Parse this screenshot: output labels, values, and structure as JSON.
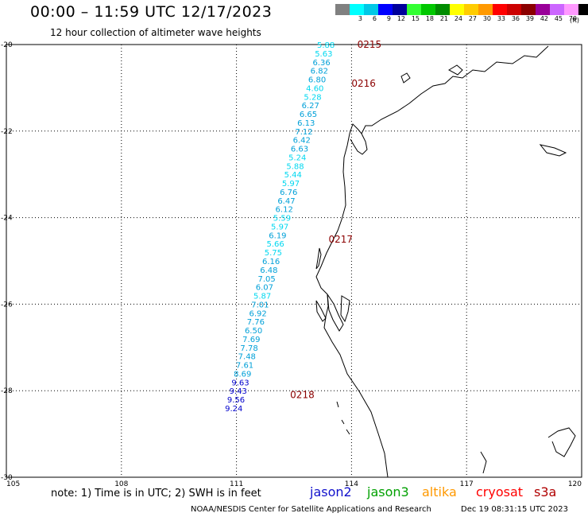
{
  "header": {
    "title": "00:00 – 11:59 UTC 12/17/2023",
    "subtitle": "12 hour collection of altimeter wave heights"
  },
  "scale": {
    "unit": "(ft)",
    "items": [
      {
        "label": "",
        "color": "#808080"
      },
      {
        "label": "3",
        "color": "#00ffff"
      },
      {
        "label": "6",
        "color": "#00c8e6"
      },
      {
        "label": "9",
        "color": "#0000ff"
      },
      {
        "label": "12",
        "color": "#00009b"
      },
      {
        "label": "15",
        "color": "#33ff33"
      },
      {
        "label": "18",
        "color": "#00c800"
      },
      {
        "label": "21",
        "color": "#008c00"
      },
      {
        "label": "24",
        "color": "#ffff00"
      },
      {
        "label": "27",
        "color": "#ffcc00"
      },
      {
        "label": "30",
        "color": "#ff9900"
      },
      {
        "label": "33",
        "color": "#ff0000"
      },
      {
        "label": "36",
        "color": "#cc0000"
      },
      {
        "label": "39",
        "color": "#8b0000"
      },
      {
        "label": "42",
        "color": "#990099"
      },
      {
        "label": "45",
        "color": "#cc66ff"
      },
      {
        "label": "70",
        "color": "#ff99ff"
      },
      {
        "label": "",
        "color": "#000000"
      }
    ]
  },
  "axes": {
    "lon_labels": [
      "105",
      "108",
      "111",
      "114",
      "117",
      "120"
    ],
    "lat_labels": [
      "-20",
      "-22",
      "-24",
      "-26",
      "-28",
      "-30"
    ],
    "lon_range": [
      105,
      120
    ],
    "lat_range": [
      -20,
      -30
    ]
  },
  "track": {
    "satellite": "jason2",
    "lat_start": -20.0,
    "lat_step": -0.2,
    "lon_top": 113.1,
    "lon_bottom": 110.7,
    "values": [
      "5.88",
      "5.63",
      "6.36",
      "6.82",
      "6.80",
      "4.60",
      "5.28",
      "6.27",
      "6.65",
      "6.13",
      "7.12",
      "6.42",
      "6.63",
      "5.24",
      "5.88",
      "5.44",
      "5.97",
      "6.76",
      "6.47",
      "6.12",
      "5.59",
      "5.97",
      "6.19",
      "5.66",
      "5.75",
      "6.16",
      "6.48",
      "7.05",
      "6.07",
      "5.87",
      "7.01",
      "6.92",
      "7.76",
      "6.50",
      "7.69",
      "7.78",
      "7.48",
      "7.61",
      "8.69",
      "9.63",
      "9.43",
      "9.56",
      "9.24"
    ],
    "colors": {
      "below6": "#00d8f0",
      "6to9": "#00a0d8",
      "9to12": "#0000cc"
    }
  },
  "time_labels": [
    {
      "text": "0215",
      "lat": -20.0,
      "lon": 114.15
    },
    {
      "text": "0216",
      "lat": -20.9,
      "lon": 114.0
    },
    {
      "text": "0217",
      "lat": -24.5,
      "lon": 113.4
    },
    {
      "text": "0218",
      "lat": -28.1,
      "lon": 112.4
    }
  ],
  "time_label_color": "#8b0000",
  "note": "note: 1) Time is in UTC; 2) SWH is in feet",
  "satellites": [
    {
      "name": "jason2",
      "color": "#1010cc"
    },
    {
      "name": "jason3",
      "color": "#00a000"
    },
    {
      "name": "altika",
      "color": "#ff9900"
    },
    {
      "name": "cryosat",
      "color": "#ff0000"
    },
    {
      "name": "s3a",
      "color": "#b00000"
    }
  ],
  "footer": {
    "credit": "NOAA/NESDIS Center for Satellite Applications and Research",
    "timestamp": "Dec 19 08:31:15 UTC 2023"
  }
}
